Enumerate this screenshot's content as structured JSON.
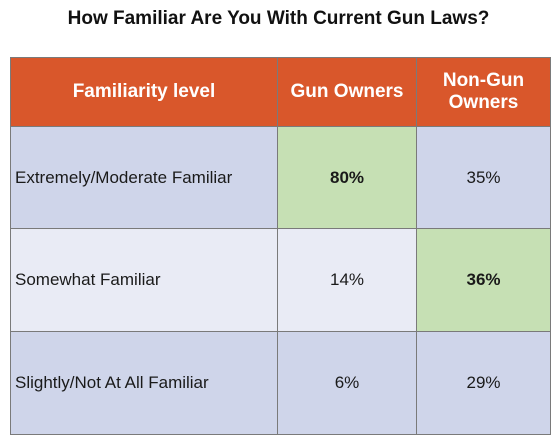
{
  "chart_data": {
    "type": "table",
    "title": "How Familiar Are You With Current Gun Laws?",
    "header": {
      "label": "Familiarity level",
      "gun_owners": "Gun Owners",
      "non_gun_owners": "Non-Gun Owners"
    },
    "rows": [
      {
        "label": "Extremely/Moderate Familiar",
        "gun_owners": "80%",
        "non_gun_owners": "35%"
      },
      {
        "label": "Somewhat Familiar",
        "gun_owners": "14%",
        "non_gun_owners": "36%"
      },
      {
        "label": "Slightly/Not At All Familiar",
        "gun_owners": "6%",
        "non_gun_owners": "29%"
      }
    ],
    "highlight_color": "#c6e0b4",
    "header_color": "#d9572b",
    "row_colors": [
      "#cfd5ea",
      "#e9ebf5",
      "#cfd5ea"
    ]
  }
}
